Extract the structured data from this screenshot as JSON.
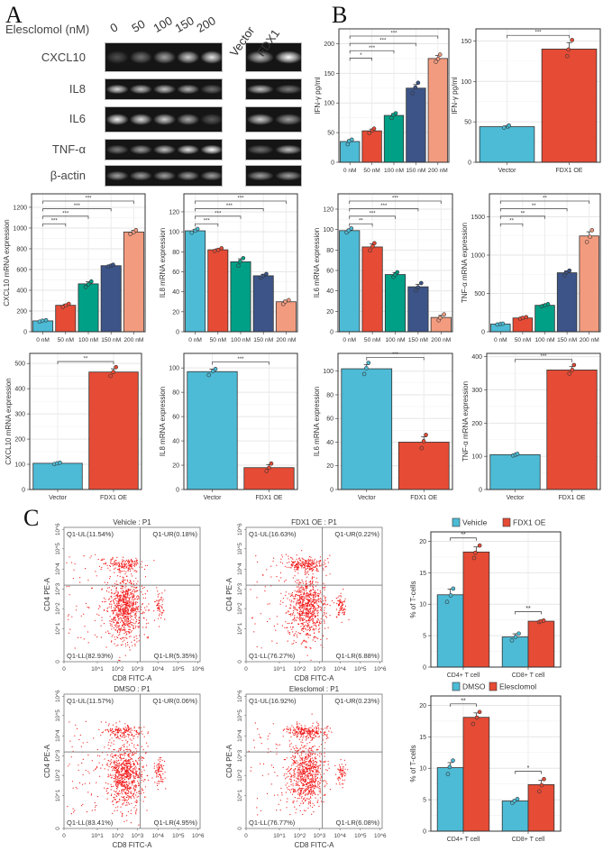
{
  "panels": {
    "a": "A",
    "b": "B",
    "c": "C"
  },
  "colors": {
    "c1": "#4DBBD5",
    "c2": "#E64B35",
    "c3": "#00A087",
    "c4": "#3C5488",
    "c5": "#F39B7F"
  },
  "gel": {
    "treatment_label": "Elesclomol (nM)",
    "doses": [
      "0",
      "50",
      "100",
      "150",
      "200"
    ],
    "oe_lanes": [
      "Vector",
      "FDX1"
    ],
    "rows": [
      {
        "name": "CXCL10",
        "dose_intensity": [
          0.25,
          0.4,
          0.6,
          0.8,
          0.9
        ],
        "oe_intensity": [
          0.75,
          1.0
        ]
      },
      {
        "name": "IL8",
        "dose_intensity": [
          0.85,
          0.75,
          0.75,
          0.7,
          0.4
        ],
        "oe_intensity": [
          0.75,
          0.45
        ]
      },
      {
        "name": "IL6",
        "dose_intensity": [
          0.95,
          0.85,
          0.8,
          0.65,
          0.3
        ],
        "oe_intensity": [
          0.8,
          0.6
        ]
      },
      {
        "name": "TNF-α",
        "dose_intensity": [
          0.45,
          0.6,
          0.75,
          0.9,
          1.0
        ],
        "oe_intensity": [
          0.4,
          0.75
        ]
      },
      {
        "name": "β-actin",
        "dose_intensity": [
          0.6,
          0.6,
          0.6,
          0.6,
          0.6
        ],
        "oe_intensity": [
          0.6,
          0.6
        ]
      }
    ]
  },
  "chart_data": [
    {
      "id": "ifn-dose",
      "type": "bar",
      "ylabel": "IFN-γ pg/ml",
      "categories": [
        "0 nM",
        "50 nM",
        "100 nM",
        "150 nM",
        "200 nM"
      ],
      "values": [
        35,
        53,
        79,
        125,
        175
      ],
      "errors": [
        3,
        3,
        3,
        6,
        5
      ],
      "colorKeys": [
        "c1",
        "c2",
        "c3",
        "c4",
        "c5"
      ],
      "ylim": [
        0,
        225
      ],
      "yticks": [
        0,
        50,
        100,
        150,
        200
      ],
      "significance": [
        {
          "from": 0,
          "to": 1,
          "label": "*"
        },
        {
          "from": 0,
          "to": 2,
          "label": "***"
        },
        {
          "from": 0,
          "to": 3,
          "label": "***"
        },
        {
          "from": 0,
          "to": 4,
          "label": "***"
        }
      ]
    },
    {
      "id": "ifn-oe",
      "type": "bar",
      "ylabel": "IFN-γ pg/ml",
      "categories": [
        "Vector",
        "FDX1 OE"
      ],
      "values": [
        44,
        140
      ],
      "errors": [
        1,
        8
      ],
      "colorKeys": [
        "c1",
        "c2"
      ],
      "ylim": [
        0,
        165
      ],
      "yticks": [
        0,
        50,
        100,
        150
      ],
      "significance": [
        {
          "from": 0,
          "to": 1,
          "label": "***"
        }
      ]
    },
    {
      "id": "cxcl10-dose",
      "type": "bar",
      "ylabel": "CXCL10 mRNA expression",
      "categories": [
        "0 nM",
        "50 nM",
        "100 nM",
        "150 nM",
        "200 nM"
      ],
      "values": [
        105,
        255,
        462,
        637,
        962
      ],
      "errors": [
        5,
        12,
        20,
        8,
        15
      ],
      "colorKeys": [
        "c1",
        "c2",
        "c3",
        "c4",
        "c5"
      ],
      "ylim": [
        0,
        1330
      ],
      "yticks": [
        0,
        200,
        400,
        600,
        800,
        1000,
        1200
      ],
      "significance": [
        {
          "from": 0,
          "to": 1,
          "label": "***"
        },
        {
          "from": 0,
          "to": 2,
          "label": "***"
        },
        {
          "from": 0,
          "to": 3,
          "label": "***"
        },
        {
          "from": 0,
          "to": 4,
          "label": "***"
        }
      ]
    },
    {
      "id": "il8-dose",
      "type": "bar",
      "ylabel": "IL8 mRNA expression",
      "categories": [
        "0 nM",
        "50 nM",
        "100 nM",
        "150 nM",
        "200 nM"
      ],
      "values": [
        101,
        82,
        70,
        56,
        30
      ],
      "errors": [
        1.5,
        1,
        3,
        1.5,
        1.5
      ],
      "colorKeys": [
        "c1",
        "c2",
        "c3",
        "c4",
        "c5"
      ],
      "ylim": [
        0,
        138
      ],
      "yticks": [
        0,
        20,
        40,
        60,
        80,
        100,
        120
      ],
      "significance": [
        {
          "from": 0,
          "to": 1,
          "label": "***"
        },
        {
          "from": 0,
          "to": 2,
          "label": "***"
        },
        {
          "from": 0,
          "to": 3,
          "label": "***"
        },
        {
          "from": 0,
          "to": 4,
          "label": "***"
        }
      ]
    },
    {
      "id": "il6-dose",
      "type": "bar",
      "ylabel": "IL6 mRNA expression",
      "categories": [
        "0 nM",
        "50 nM",
        "100 nM",
        "150 nM",
        "200 nM"
      ],
      "values": [
        99,
        83,
        56,
        44,
        14
      ],
      "errors": [
        1.5,
        3,
        2,
        2.5,
        2
      ],
      "colorKeys": [
        "c1",
        "c2",
        "c3",
        "c4",
        "c5"
      ],
      "ylim": [
        0,
        135
      ],
      "yticks": [
        0,
        20,
        40,
        60,
        80,
        100,
        120
      ],
      "significance": [
        {
          "from": 0,
          "to": 1,
          "label": "**"
        },
        {
          "from": 0,
          "to": 2,
          "label": "***"
        },
        {
          "from": 0,
          "to": 3,
          "label": "***"
        },
        {
          "from": 0,
          "to": 4,
          "label": "***"
        }
      ]
    },
    {
      "id": "tnf-dose",
      "type": "bar",
      "ylabel": "TNF-α mRNA expression",
      "categories": [
        "0 nM",
        "50 nM",
        "100 nM",
        "150 nM",
        "200 nM"
      ],
      "values": [
        100,
        180,
        345,
        770,
        1250
      ],
      "errors": [
        5,
        8,
        12,
        25,
        55
      ],
      "colorKeys": [
        "c1",
        "c2",
        "c3",
        "c4",
        "c5"
      ],
      "ylim": [
        0,
        1800
      ],
      "yticks": [
        0,
        500,
        1000,
        1500
      ],
      "significance": [
        {
          "from": 0,
          "to": 1,
          "label": "**"
        },
        {
          "from": 0,
          "to": 2,
          "label": "**"
        },
        {
          "from": 0,
          "to": 3,
          "label": "**"
        },
        {
          "from": 0,
          "to": 4,
          "label": "**"
        }
      ]
    },
    {
      "id": "cxcl10-oe",
      "type": "bar",
      "ylabel": "CXCL10 mRNA expression",
      "categories": [
        "Vector",
        "FDX1 OE"
      ],
      "values": [
        104,
        466
      ],
      "errors": [
        2,
        13
      ],
      "colorKeys": [
        "c1",
        "c2"
      ],
      "ylim": [
        0,
        540
      ],
      "yticks": [
        0,
        100,
        200,
        300,
        400,
        500
      ],
      "significance": [
        {
          "from": 0,
          "to": 1,
          "label": "**"
        }
      ]
    },
    {
      "id": "il8-oe",
      "type": "bar",
      "ylabel": "IL8 mRNA expression",
      "categories": [
        "Vector",
        "FDX1 OE"
      ],
      "values": [
        97,
        18
      ],
      "errors": [
        2,
        2.5
      ],
      "colorKeys": [
        "c1",
        "c2"
      ],
      "ylim": [
        0,
        112
      ],
      "yticks": [
        0,
        20,
        40,
        60,
        80,
        100
      ],
      "significance": [
        {
          "from": 0,
          "to": 1,
          "label": "***"
        }
      ]
    },
    {
      "id": "il6-oe",
      "type": "bar",
      "ylabel": "IL6 mRNA expression",
      "categories": [
        "Vector",
        "FDX1 OE"
      ],
      "values": [
        102,
        40
      ],
      "errors": [
        3.5,
        4.5
      ],
      "colorKeys": [
        "c1",
        "c2"
      ],
      "ylim": [
        0,
        115
      ],
      "yticks": [
        0,
        20,
        40,
        60,
        80,
        100
      ],
      "significance": [
        {
          "from": 0,
          "to": 1,
          "label": "***"
        }
      ]
    },
    {
      "id": "tnf-oe",
      "type": "bar",
      "ylabel": "TNF-α mRNA expression",
      "categories": [
        "Vector",
        "FDX1 OE"
      ],
      "values": [
        105,
        360
      ],
      "errors": [
        2,
        10
      ],
      "colorKeys": [
        "c1",
        "c2"
      ],
      "ylim": [
        0,
        410
      ],
      "yticks": [
        0,
        100,
        200,
        300,
        400
      ],
      "significance": [
        {
          "from": 0,
          "to": 1,
          "label": "***"
        }
      ]
    },
    {
      "id": "tcell-oe",
      "type": "bar",
      "ylabel": "% of T-cells",
      "categories": [
        "CD4+ T cell",
        "CD8+ T cell"
      ],
      "series": [
        {
          "name": "Vehicle",
          "colorKey": "c1",
          "values": [
            11.5,
            4.8
          ],
          "errors": [
            0.9,
            0.5
          ]
        },
        {
          "name": "FDX1 OE",
          "colorKey": "c2",
          "values": [
            18.3,
            7.3
          ],
          "errors": [
            0.8,
            0.1
          ]
        }
      ],
      "legend": "top",
      "ylim": [
        0,
        21.5
      ],
      "yticks": [
        0,
        5,
        10,
        15,
        20
      ],
      "significance": [
        {
          "group": 0,
          "label": "**"
        },
        {
          "group": 1,
          "label": "**"
        }
      ]
    },
    {
      "id": "tcell-drug",
      "type": "bar",
      "ylabel": "% of T-cells",
      "categories": [
        "CD4+ T cell",
        "CD8+ T cell"
      ],
      "series": [
        {
          "name": "DMSO",
          "colorKey": "c1",
          "values": [
            10.1,
            4.8
          ],
          "errors": [
            0.8,
            0.2
          ]
        },
        {
          "name": "Elesclomol",
          "colorKey": "c2",
          "values": [
            18.1,
            7.4
          ],
          "errors": [
            0.7,
            0.7
          ]
        }
      ],
      "legend": "top",
      "ylim": [
        0,
        21.5
      ],
      "yticks": [
        0,
        5,
        10,
        15,
        20
      ],
      "significance": [
        {
          "group": 0,
          "label": "**"
        },
        {
          "group": 1,
          "label": "*"
        }
      ]
    }
  ],
  "flow": {
    "xlabel": "CD8 FITC-A",
    "ylabel": "CD4 PE-A",
    "ticks": [
      "0",
      "10^1",
      "10^2",
      "10^3",
      "10^4",
      "10^5",
      "10^6"
    ],
    "plots": [
      {
        "title": "Vehicle : P1",
        "UL": "Q1-UL(11.54%)",
        "UR": "Q1-UR(0.18%)",
        "LL": "Q1-LL(82.93%)",
        "LR": "Q1-LR(5.35%)",
        "cd4": 11.54,
        "cd8": 5.35
      },
      {
        "title": "FDX1 OE : P1",
        "UL": "Q1-UL(16.63%)",
        "UR": "Q1-UR(0.22%)",
        "LL": "Q1-LL(76.27%)",
        "LR": "Q1-LR(6.88%)",
        "cd4": 16.63,
        "cd8": 6.88
      },
      {
        "title": "DMSO : P1",
        "UL": "Q1-UL(11.57%)",
        "UR": "Q1-UR(0.06%)",
        "LL": "Q1-LL(83.41%)",
        "LR": "Q1-LR(4.95%)",
        "cd4": 11.57,
        "cd8": 4.95
      },
      {
        "title": "Elesclomol : P1",
        "UL": "Q1-UL(16.92%)",
        "UR": "Q1-UR(0.23%)",
        "LL": "Q1-LL(76.77%)",
        "LR": "Q1-LR(6.08%)",
        "cd4": 16.92,
        "cd8": 6.08
      }
    ]
  }
}
